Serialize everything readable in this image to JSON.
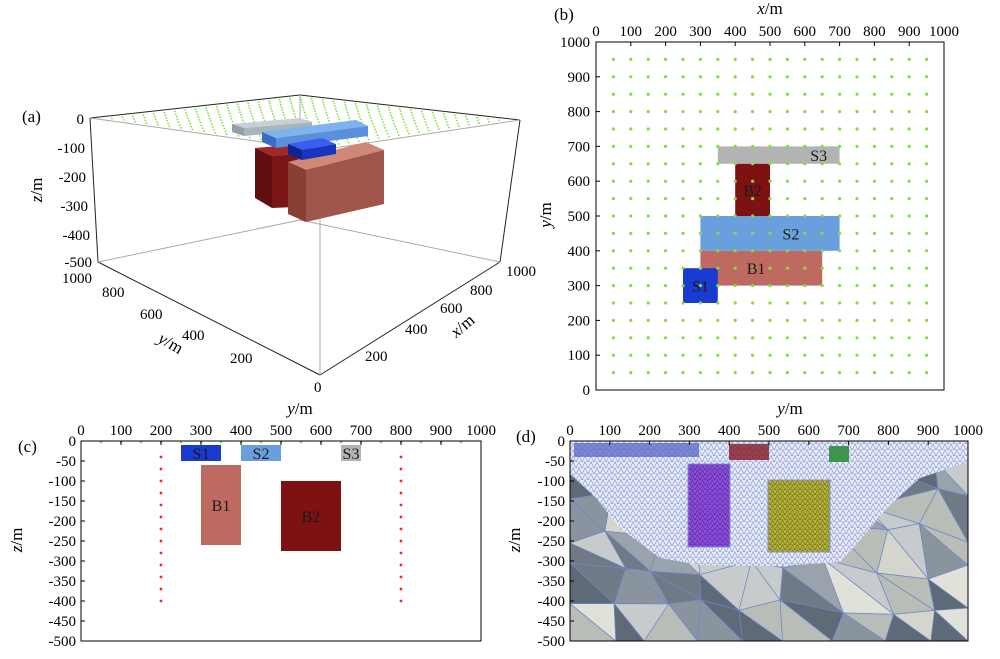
{
  "panels": {
    "a": {
      "tag": "(a)",
      "z_axis": {
        "name": "z",
        "unit": "/m",
        "ticks": [
          "0",
          "-100",
          "-200",
          "-300",
          "-400",
          "-500"
        ]
      },
      "y_axis": {
        "name": "y",
        "unit": "/m",
        "ticks": [
          "1000",
          "800",
          "600",
          "400",
          "200"
        ]
      },
      "x_axis": {
        "name": "x",
        "unit": "/m",
        "ticks": [
          "0",
          "200",
          "400",
          "600",
          "800",
          "1000"
        ]
      }
    },
    "b": {
      "tag": "(b)",
      "x_axis": {
        "name": "x",
        "unit": "/m",
        "ticks": [
          "0",
          "100",
          "200",
          "300",
          "400",
          "500",
          "600",
          "700",
          "800",
          "900",
          "1000"
        ]
      },
      "y_axis": {
        "name": "y",
        "unit": "/m",
        "ticks": [
          "0",
          "100",
          "200",
          "300",
          "400",
          "500",
          "600",
          "700",
          "800",
          "900",
          "1000"
        ]
      },
      "blocks": [
        {
          "label": "S3",
          "x": [
            350,
            700
          ],
          "y": [
            650,
            700
          ],
          "color": "#b3b3b3"
        },
        {
          "label": "B2",
          "x": [
            400,
            500
          ],
          "y": [
            500,
            650
          ],
          "color": "#7e1212"
        },
        {
          "label": "S2",
          "x": [
            300,
            700
          ],
          "y": [
            400,
            500
          ],
          "color": "#6a9fde"
        },
        {
          "label": "B1",
          "x": [
            300,
            650
          ],
          "y": [
            300,
            400
          ],
          "color": "#be6a60"
        },
        {
          "label": "S1",
          "x": [
            250,
            350
          ],
          "y": [
            250,
            350
          ],
          "color": "#1a3bd0"
        }
      ],
      "station_grid": {
        "start": 50,
        "end": 950,
        "step": 50,
        "color": "#7ee040"
      }
    },
    "c": {
      "tag": "(c)",
      "x_axis": {
        "name": "y",
        "unit": "/m",
        "ticks": [
          "0",
          "100",
          "200",
          "300",
          "400",
          "500",
          "600",
          "700",
          "800",
          "900",
          "1000"
        ]
      },
      "y_axis": {
        "name": "z",
        "unit": "/m",
        "ticks": [
          "0",
          "-50",
          "-100",
          "-150",
          "-200",
          "-250",
          "-300",
          "-350",
          "-400",
          "-450",
          "-500"
        ]
      },
      "blocks": [
        {
          "label": "S1",
          "y": [
            250,
            350
          ],
          "z": [
            -50,
            -10
          ],
          "color": "#1a3bd0"
        },
        {
          "label": "S2",
          "y": [
            400,
            500
          ],
          "z": [
            -50,
            -10
          ],
          "color": "#6a9fde"
        },
        {
          "label": "S3",
          "y": [
            650,
            700
          ],
          "z": [
            -50,
            -10
          ],
          "color": "#b3b3b3"
        },
        {
          "label": "B1",
          "y": [
            300,
            400
          ],
          "z": [
            -260,
            -60
          ],
          "color": "#be6a60"
        },
        {
          "label": "B2",
          "y": [
            500,
            650
          ],
          "z": [
            -275,
            -100
          ],
          "color": "#7e1212"
        }
      ],
      "boreholes": {
        "y": [
          200,
          800
        ],
        "z_start": -40,
        "z_end": -400,
        "step": 30,
        "color": "#ff2020"
      }
    },
    "d": {
      "tag": "(d)",
      "x_axis": {
        "name": "y",
        "unit": "/m",
        "ticks": [
          "0",
          "100",
          "200",
          "300",
          "400",
          "500",
          "600",
          "700",
          "800",
          "900",
          "1000"
        ]
      },
      "y_axis": {
        "name": "z",
        "unit": "/m",
        "ticks": [
          "0",
          "-50",
          "-100",
          "-150",
          "-200",
          "-250",
          "-300",
          "-350",
          "-400",
          "-450",
          "-500"
        ]
      }
    }
  },
  "colors": {
    "s1": "#1a3bd0",
    "s2": "#6a9fde",
    "s3": "#b3b3b3",
    "b1": "#be6a60",
    "b2": "#7e1212",
    "stations": "#7ee040",
    "holes": "#ff2020"
  }
}
